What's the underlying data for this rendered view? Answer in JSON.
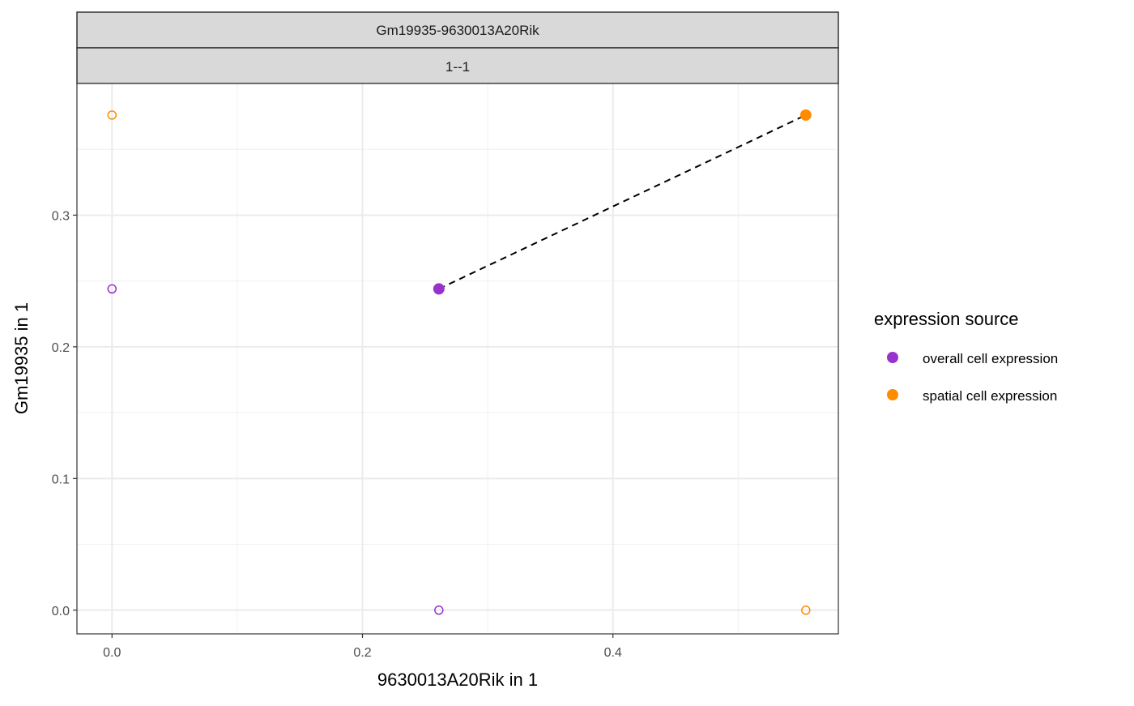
{
  "chart_data": {
    "type": "scatter",
    "facet_strips": [
      "Gm19935-9630013A20Rik",
      "1--1"
    ],
    "xlabel": "9630013A20Rik in 1",
    "ylabel": "Gm19935 in 1",
    "xlim": [
      -0.028,
      0.58
    ],
    "ylim": [
      -0.018,
      0.4
    ],
    "x_ticks": [
      0.0,
      0.2,
      0.4
    ],
    "x_tick_labels": [
      "0.0",
      "0.2",
      "0.4"
    ],
    "y_ticks": [
      0.0,
      0.1,
      0.2,
      0.3
    ],
    "y_tick_labels": [
      "0.0",
      "0.1",
      "0.2",
      "0.3"
    ],
    "x_minor_ticks": [
      0.1,
      0.3,
      0.5
    ],
    "y_minor_ticks": [
      0.05,
      0.15,
      0.25,
      0.35
    ],
    "grid": true,
    "legend": {
      "title": "expression source",
      "position": "right",
      "entries": [
        {
          "label": "overall cell expression",
          "color": "#9932CC"
        },
        {
          "label": "spatial cell expression",
          "color": "#FF8C00"
        }
      ]
    },
    "series": [
      {
        "name": "overall cell expression",
        "color": "#9932CC",
        "filled_points": [
          {
            "x": 0.261,
            "y": 0.244
          }
        ],
        "hollow_points": [
          {
            "x": 0.0,
            "y": 0.244
          },
          {
            "x": 0.261,
            "y": 0.0
          }
        ]
      },
      {
        "name": "spatial cell expression",
        "color": "#FF8C00",
        "filled_points": [
          {
            "x": 0.554,
            "y": 0.376
          }
        ],
        "hollow_points": [
          {
            "x": 0.0,
            "y": 0.376
          },
          {
            "x": 0.554,
            "y": 0.0
          }
        ]
      }
    ],
    "connector": {
      "style": "dashed",
      "color": "#000000",
      "from": {
        "x": 0.261,
        "y": 0.244
      },
      "to": {
        "x": 0.554,
        "y": 0.376
      }
    }
  }
}
